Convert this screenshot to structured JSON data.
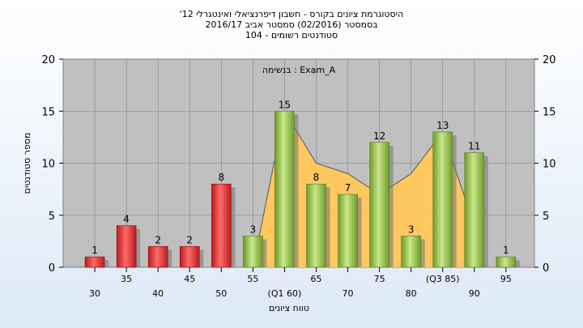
{
  "chart_data": {
    "type": "bar",
    "title_lines": [
      "'היסטוגרמת ציונים בקורס - חשבון דיפרנציאלי ואינטגרלי 12",
      "בסמסטר  (02/2016)  סמסטר אביב 2016/17",
      "סטודנטים רשומים - 104"
    ],
    "annotation": "בנשימה : Exam_A",
    "xlabel": "טווח ציונים",
    "ylabel": "מספר סטודנטים",
    "ylim": [
      0,
      20
    ],
    "yticks": [
      "0",
      "5",
      "10",
      "15",
      "20"
    ],
    "categories": [
      "30",
      "35",
      "40",
      "45",
      "50",
      "55",
      "(Q1 60)",
      "65",
      "70",
      "75",
      "80",
      "(Q3 85)",
      "90",
      "95"
    ],
    "values": [
      1,
      4,
      2,
      2,
      8,
      3,
      15,
      8,
      7,
      12,
      3,
      13,
      11,
      1
    ],
    "value_labels": [
      "1",
      "4",
      "2",
      "2",
      "8",
      "3",
      "15",
      "8",
      "7",
      "12",
      "3",
      "13",
      "11",
      "1"
    ],
    "fail_count": 5,
    "area": {
      "start_index": 5,
      "end_index": 12,
      "values": [
        0,
        15,
        10,
        9,
        7,
        9,
        13,
        4
      ]
    },
    "colors": {
      "fail_bar": "#e8403f",
      "pass_bar": "#9cc84a",
      "area": "#ffc85a",
      "plot_bg": "#c0c0c0",
      "grid": "#808080"
    }
  }
}
